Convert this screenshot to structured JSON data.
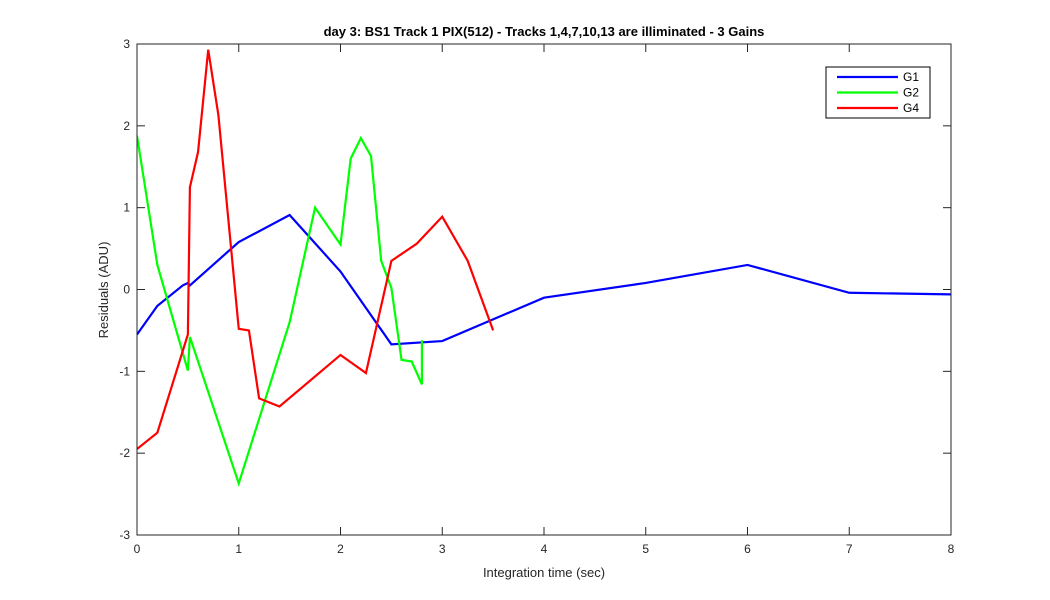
{
  "chart_data": {
    "type": "line",
    "title": "day 3: BS1  Track 1 PIX(512) - Tracks 1,4,7,10,13 are illiminated - 3 Gains",
    "xlabel": "Integration time (sec)",
    "ylabel": "Residuals (ADU)",
    "xlim": [
      0,
      8
    ],
    "ylim": [
      -3,
      3
    ],
    "xticks": [
      0,
      1,
      2,
      3,
      4,
      5,
      6,
      7,
      8
    ],
    "yticks": [
      -3,
      -2,
      -1,
      0,
      1,
      2,
      3
    ],
    "xtick_labels": [
      "0",
      "1",
      "2",
      "3",
      "4",
      "5",
      "6",
      "7",
      "8"
    ],
    "ytick_labels": [
      "-3",
      "-2",
      "-1",
      "0",
      "1",
      "2",
      "3"
    ],
    "grid": false,
    "legend_position": "top-right",
    "series": [
      {
        "name": "G1",
        "color": "#0000ff",
        "x": [
          0,
          0.2,
          0.45,
          0.5,
          0.52,
          1.0,
          1.5,
          2.0,
          2.5,
          3.0,
          4.0,
          5.0,
          6.0,
          7.0,
          8.0
        ],
        "y": [
          -0.55,
          -0.2,
          0.05,
          0.08,
          0.05,
          0.58,
          0.91,
          0.22,
          -0.67,
          -0.63,
          -0.1,
          0.08,
          0.3,
          -0.04,
          -0.06
        ]
      },
      {
        "name": "G2",
        "color": "#00ff00",
        "x": [
          0,
          0.2,
          0.5,
          0.52,
          1.0,
          1.5,
          1.75,
          2.0,
          2.1,
          2.2,
          2.3,
          2.4,
          2.5,
          2.6,
          2.7,
          2.8,
          2.8
        ],
        "y": [
          1.88,
          0.3,
          -0.99,
          -0.58,
          -2.37,
          -0.4,
          1.0,
          0.55,
          1.6,
          1.85,
          1.63,
          0.35,
          0.02,
          -0.86,
          -0.88,
          -1.16,
          -0.62
        ]
      },
      {
        "name": "G4",
        "color": "#ff0000",
        "x": [
          0,
          0.2,
          0.5,
          0.52,
          0.6,
          0.7,
          0.8,
          1.0,
          1.1,
          1.2,
          1.4,
          2.0,
          2.25,
          2.5,
          2.75,
          3.0,
          3.25,
          3.5
        ],
        "y": [
          -1.95,
          -1.75,
          -0.55,
          1.25,
          1.68,
          2.93,
          2.13,
          -0.48,
          -0.5,
          -1.33,
          -1.43,
          -0.8,
          -1.02,
          0.35,
          0.56,
          0.89,
          0.35,
          -0.5
        ]
      }
    ]
  }
}
